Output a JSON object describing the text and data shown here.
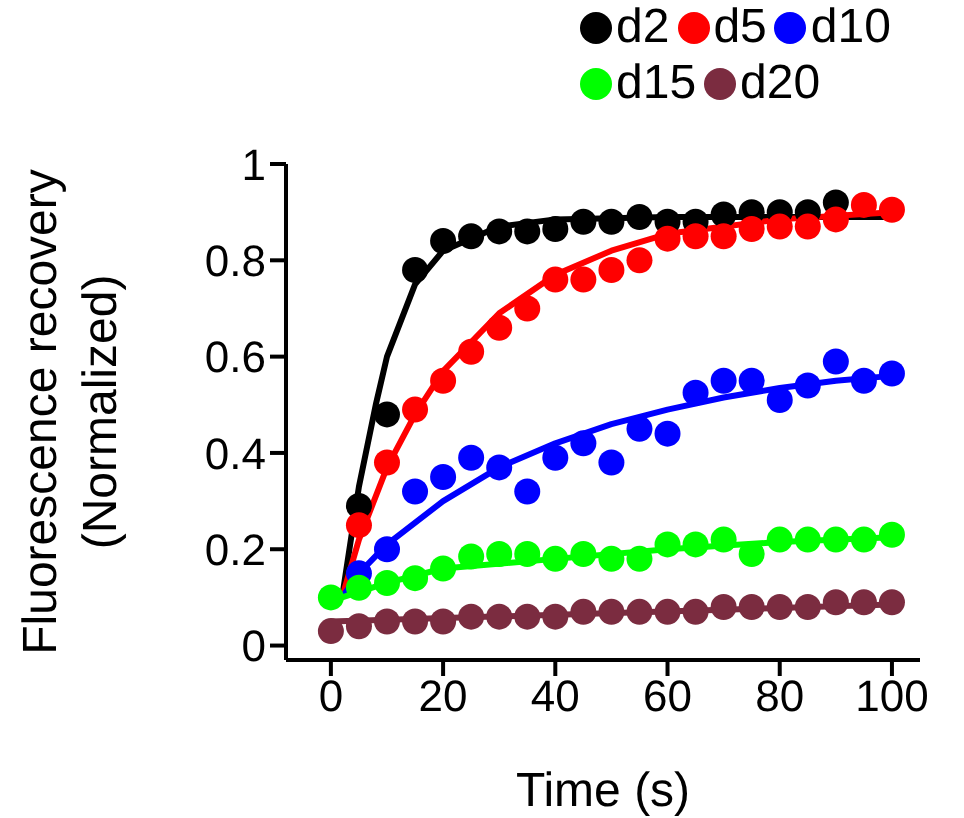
{
  "chart_data": {
    "type": "scatter",
    "xlabel": "Time (s)",
    "ylabel": "Fluorescence recovery\n(Normalized)",
    "xlim": [
      -8,
      105
    ],
    "ylim": [
      -0.03,
      1
    ],
    "xticks": [
      0,
      20,
      40,
      60,
      80,
      100
    ],
    "yticks": [
      0,
      0.2,
      0.4,
      0.6,
      0.8,
      1
    ],
    "marker": "circle",
    "legend": "top right",
    "x": [
      0,
      5,
      10,
      15,
      20,
      25,
      30,
      35,
      40,
      45,
      50,
      55,
      60,
      65,
      70,
      75,
      80,
      85,
      90,
      95,
      100
    ],
    "series": [
      {
        "name": "d2",
        "color": "#000000",
        "values": [
          null,
          0.29,
          0.48,
          0.78,
          0.84,
          0.85,
          0.86,
          0.86,
          0.865,
          0.88,
          0.88,
          0.89,
          0.88,
          0.88,
          0.895,
          0.9,
          0.9,
          0.9,
          0.92,
          null,
          null
        ]
      },
      {
        "name": "d5",
        "color": "#ff0000",
        "values": [
          null,
          0.25,
          0.38,
          0.49,
          0.55,
          0.61,
          0.66,
          0.7,
          0.76,
          0.76,
          0.78,
          0.8,
          0.845,
          0.85,
          0.85,
          0.865,
          0.87,
          0.87,
          0.885,
          0.915,
          0.905
        ]
      },
      {
        "name": "d10",
        "color": "#0000ff",
        "values": [
          null,
          0.15,
          0.2,
          0.32,
          0.35,
          0.39,
          0.37,
          0.32,
          0.39,
          0.42,
          0.38,
          0.45,
          0.44,
          0.525,
          0.55,
          0.55,
          0.51,
          0.54,
          0.59,
          0.55,
          0.565
        ]
      },
      {
        "name": "d15",
        "color": "#00ff00",
        "values": [
          0.1,
          0.12,
          0.13,
          0.14,
          0.16,
          0.185,
          0.19,
          0.19,
          0.18,
          0.19,
          0.18,
          0.18,
          0.21,
          0.21,
          0.22,
          0.19,
          0.22,
          0.22,
          0.22,
          0.22,
          0.23
        ]
      },
      {
        "name": "d20",
        "color": "#7b2c40",
        "values": [
          0.03,
          0.04,
          0.05,
          0.05,
          0.05,
          0.06,
          0.06,
          0.06,
          0.06,
          0.07,
          0.07,
          0.07,
          0.07,
          0.07,
          0.08,
          0.08,
          0.08,
          0.08,
          0.09,
          0.09,
          0.09
        ]
      },
      {
        "type": "line",
        "marker": "none",
        "color": "#000000",
        "x": [
          2,
          5,
          8,
          10,
          15,
          20,
          30,
          40,
          60,
          100
        ],
        "values": [
          0.1,
          0.33,
          0.5,
          0.6,
          0.75,
          0.82,
          0.87,
          0.885,
          0.89,
          0.89
        ]
      },
      {
        "type": "line",
        "marker": "none",
        "color": "#ff0000",
        "x": [
          2,
          5,
          10,
          15,
          20,
          30,
          40,
          50,
          60,
          80,
          100
        ],
        "values": [
          0.1,
          0.22,
          0.37,
          0.48,
          0.57,
          0.69,
          0.77,
          0.82,
          0.855,
          0.885,
          0.9
        ]
      },
      {
        "type": "line",
        "marker": "none",
        "color": "#0000ff",
        "x": [
          2,
          5,
          10,
          20,
          30,
          40,
          50,
          60,
          70,
          80,
          90,
          100
        ],
        "values": [
          0.1,
          0.15,
          0.21,
          0.3,
          0.37,
          0.42,
          0.46,
          0.49,
          0.515,
          0.535,
          0.55,
          0.56
        ]
      },
      {
        "type": "line",
        "marker": "none",
        "color": "#00ff00",
        "x": [
          2,
          10,
          20,
          40,
          60,
          80,
          100
        ],
        "values": [
          0.1,
          0.13,
          0.16,
          0.18,
          0.2,
          0.215,
          0.225
        ]
      },
      {
        "type": "line",
        "marker": "none",
        "color": "#7b2c40",
        "x": [
          0,
          100
        ],
        "values": [
          0.05,
          0.085
        ]
      }
    ]
  }
}
